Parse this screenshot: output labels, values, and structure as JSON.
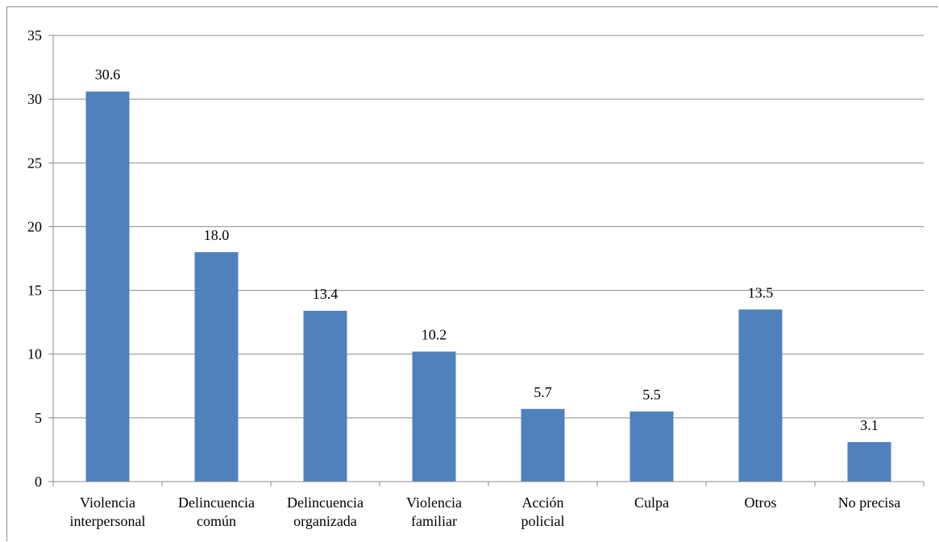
{
  "chart_data": {
    "type": "bar",
    "title": "",
    "xlabel": "",
    "ylabel": "",
    "categories": [
      [
        "Violencia",
        "interpersonal"
      ],
      [
        "Delincuencia",
        "común"
      ],
      [
        "Delincuencia",
        "organizada"
      ],
      [
        "Violencia",
        "familiar"
      ],
      [
        "Acción",
        "policial"
      ],
      [
        "Culpa"
      ],
      [
        "Otros"
      ],
      [
        "No precisa"
      ]
    ],
    "values": [
      30.6,
      18.0,
      13.4,
      10.2,
      5.7,
      5.5,
      13.5,
      3.1
    ],
    "value_labels": [
      "30.6",
      "18.0",
      "13.4",
      "10.2",
      "5.7",
      "5.5",
      "13.5",
      "3.1"
    ],
    "ylim": [
      0,
      35
    ],
    "yticks": [
      0,
      5,
      10,
      15,
      20,
      25,
      30,
      35
    ],
    "grid": true,
    "legend": "none",
    "colors": {
      "bar": "#4f81bd",
      "grid": "#8c8c8c",
      "axis": "#8c8c8c"
    }
  }
}
